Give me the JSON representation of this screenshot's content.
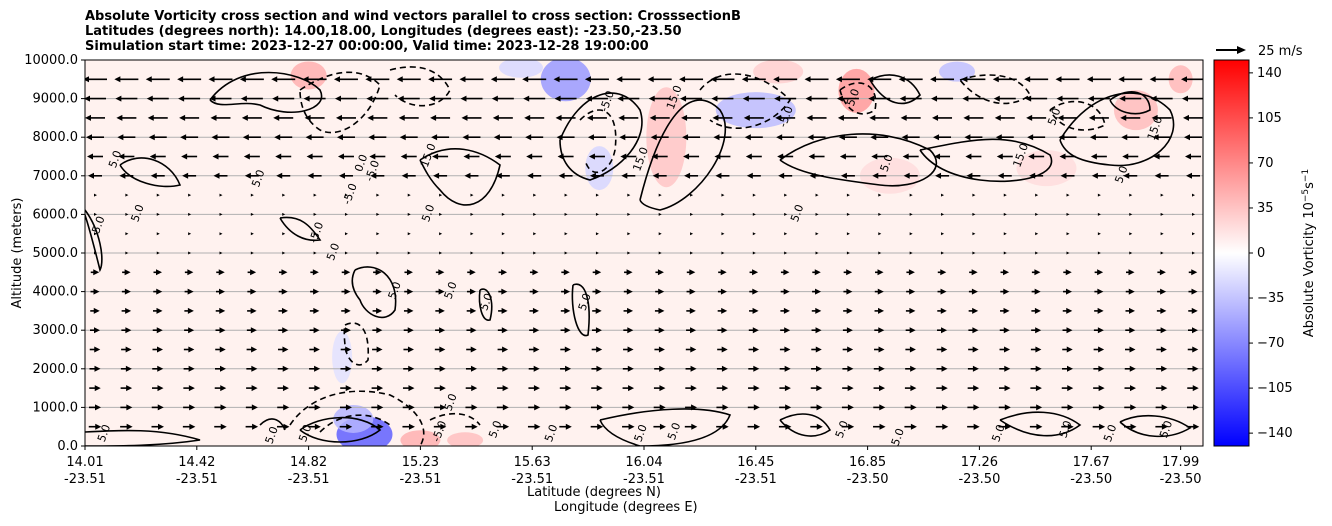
{
  "title": {
    "line1": "Absolute Vorticity cross section and wind vectors parallel to cross section: CrosssectionB",
    "line2": "Latitudes (degrees north): 14.00,18.00, Longitudes (degrees east): -23.50,-23.50",
    "line3": "Simulation start time: 2023-12-27 00:00:00, Valid time: 2023-12-28 19:00:00"
  },
  "chart_data": {
    "type": "heatmap",
    "overlay": [
      "contour",
      "quiver"
    ],
    "ylabel": "Altitude (meters)",
    "xlabel_lat": "Latitude (degrees N)",
    "xlabel_lon": "Longitude (degrees E)",
    "ylim": [
      0,
      10000
    ],
    "yticks": [
      "0.0",
      "1000.0",
      "2000.0",
      "3000.0",
      "4000.0",
      "5000.0",
      "6000.0",
      "7000.0",
      "8000.0",
      "9000.0",
      "10000.0"
    ],
    "xticks": [
      {
        "lat": "14.01",
        "lon": "-23.51",
        "pos": 0.0
      },
      {
        "lat": "14.42",
        "lon": "-23.51",
        "pos": 0.1
      },
      {
        "lat": "14.82",
        "lon": "-23.51",
        "pos": 0.2
      },
      {
        "lat": "15.23",
        "lon": "-23.51",
        "pos": 0.3
      },
      {
        "lat": "15.63",
        "lon": "-23.51",
        "pos": 0.4
      },
      {
        "lat": "16.04",
        "lon": "-23.51",
        "pos": 0.5
      },
      {
        "lat": "16.45",
        "lon": "-23.51",
        "pos": 0.6
      },
      {
        "lat": "16.85",
        "lon": "-23.50",
        "pos": 0.7
      },
      {
        "lat": "17.26",
        "lon": "-23.50",
        "pos": 0.8
      },
      {
        "lat": "17.67",
        "lon": "-23.50",
        "pos": 0.9
      },
      {
        "lat": "17.99",
        "lon": "-23.50",
        "pos": 0.98
      }
    ],
    "colorbar": {
      "label": "Absolute Vorticity 10",
      "label_sup": "−5",
      "label_unit": "s",
      "label_unit_sup": "−1",
      "ticks": [
        "140",
        "105",
        "70",
        "35",
        "0",
        "−35",
        "−70",
        "−105",
        "−140"
      ],
      "tick_values": [
        140,
        105,
        70,
        35,
        0,
        -35,
        -70,
        -105,
        -140
      ],
      "range": [
        -150,
        150
      ],
      "cmap": [
        "#0000ff",
        "#ffffff",
        "#ff0000"
      ]
    },
    "quiver_key": "25 m/s",
    "contour_labels": [
      {
        "text": "5.0",
        "x": 0.03,
        "y": 7400
      },
      {
        "text": "5.0",
        "x": 0.05,
        "y": 6000
      },
      {
        "text": "5.0",
        "x": 0.015,
        "y": 5700
      },
      {
        "text": "5.0",
        "x": 0.158,
        "y": 6900
      },
      {
        "text": "-5.0",
        "x": 0.21,
        "y": 5500
      },
      {
        "text": "5.0",
        "x": 0.225,
        "y": 5000
      },
      {
        "text": "-5.0",
        "x": 0.24,
        "y": 6500
      },
      {
        "text": "0.0",
        "x": 0.25,
        "y": 7300
      },
      {
        "text": "-5.0",
        "x": 0.26,
        "y": 7100
      },
      {
        "text": "15.0",
        "x": 0.31,
        "y": 7500
      },
      {
        "text": "5.0",
        "x": 0.28,
        "y": 4000
      },
      {
        "text": "5.0",
        "x": 0.31,
        "y": 6000
      },
      {
        "text": "5.0",
        "x": 0.33,
        "y": 4000
      },
      {
        "text": "5.0",
        "x": 0.362,
        "y": 3700
      },
      {
        "text": "5.0",
        "x": 0.45,
        "y": 3700
      },
      {
        "text": "15.0",
        "x": 0.5,
        "y": 7400
      },
      {
        "text": "15.0",
        "x": 0.53,
        "y": 9000
      },
      {
        "text": "-5.0",
        "x": 0.47,
        "y": 8900
      },
      {
        "text": "5.0",
        "x": 0.64,
        "y": 6000
      },
      {
        "text": "5.0",
        "x": 0.72,
        "y": 7300
      },
      {
        "text": "-5.0",
        "x": 0.63,
        "y": 8500
      },
      {
        "text": "5.0",
        "x": 0.69,
        "y": 9000
      },
      {
        "text": "15.0",
        "x": 0.84,
        "y": 7500
      },
      {
        "text": "5.0",
        "x": 0.87,
        "y": 8500
      },
      {
        "text": "5.0",
        "x": 0.93,
        "y": 7000
      },
      {
        "text": "15.0",
        "x": 0.96,
        "y": 8200
      },
      {
        "text": "5.0",
        "x": 0.02,
        "y": 300
      },
      {
        "text": "5.0",
        "x": 0.17,
        "y": 250
      },
      {
        "text": "5.0",
        "x": 0.2,
        "y": 300
      },
      {
        "text": "-5.0",
        "x": 0.32,
        "y": 350
      },
      {
        "text": "5.0",
        "x": 0.33,
        "y": 1100
      },
      {
        "text": "5.0",
        "x": 0.37,
        "y": 400
      },
      {
        "text": "5.0",
        "x": 0.42,
        "y": 300
      },
      {
        "text": "5.0",
        "x": 0.5,
        "y": 300
      },
      {
        "text": "5.0",
        "x": 0.53,
        "y": 350
      },
      {
        "text": "5.0",
        "x": 0.68,
        "y": 400
      },
      {
        "text": "5.0",
        "x": 0.73,
        "y": 200
      },
      {
        "text": "5.0",
        "x": 0.82,
        "y": 300
      },
      {
        "text": "5.0",
        "x": 0.88,
        "y": 400
      },
      {
        "text": "5.0",
        "x": 0.92,
        "y": 300
      },
      {
        "text": "5.0",
        "x": 0.97,
        "y": 400
      }
    ]
  }
}
